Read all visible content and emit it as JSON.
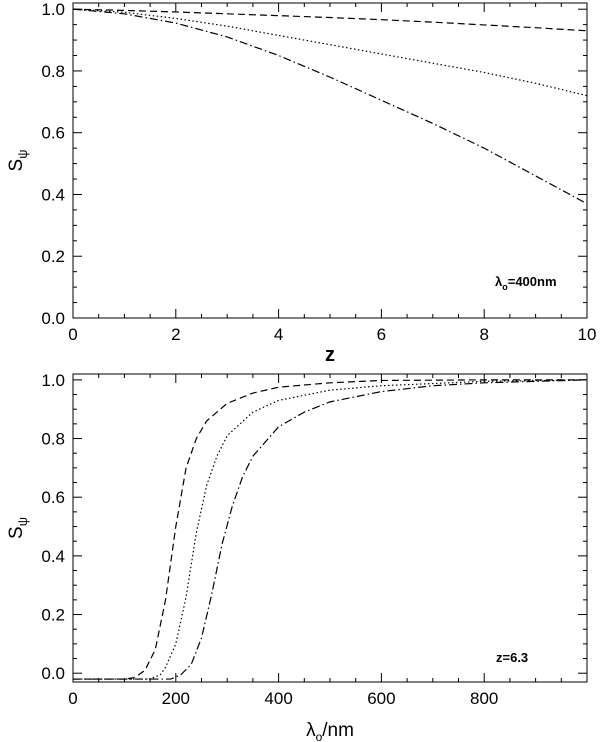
{
  "chart_data": [
    {
      "type": "line",
      "title": "",
      "xlabel": "z",
      "ylabel": {
        "main": "S",
        "sub": "ψ"
      },
      "xlim": [
        0,
        10
      ],
      "ylim": [
        0,
        1.02
      ],
      "xticks": [
        "0",
        "2",
        "4",
        "6",
        "8",
        "10"
      ],
      "yticks": [
        "0.0",
        "0.2",
        "0.4",
        "0.6",
        "0.8",
        "1.0"
      ],
      "annotation": {
        "main": "λ",
        "sub": "o",
        "rest": "=400nm"
      },
      "grid": false,
      "series": [
        {
          "style": "dashed",
          "x": [
            0,
            1,
            2,
            3,
            4,
            5,
            6,
            7,
            8,
            9,
            10
          ],
          "y": [
            1.0,
            0.996,
            0.991,
            0.985,
            0.979,
            0.973,
            0.966,
            0.958,
            0.949,
            0.94,
            0.93
          ]
        },
        {
          "style": "dotted",
          "x": [
            0,
            1,
            2,
            3,
            4,
            5,
            6,
            7,
            8,
            9,
            10
          ],
          "y": [
            1.0,
            0.99,
            0.97,
            0.945,
            0.915,
            0.885,
            0.855,
            0.825,
            0.795,
            0.76,
            0.72
          ]
        },
        {
          "style": "dash-dot",
          "x": [
            0,
            1,
            2,
            3,
            4,
            5,
            6,
            7,
            8,
            9,
            10
          ],
          "y": [
            1.0,
            0.985,
            0.955,
            0.91,
            0.85,
            0.78,
            0.705,
            0.63,
            0.55,
            0.46,
            0.37
          ]
        }
      ]
    },
    {
      "type": "line",
      "title": "",
      "xlabel": {
        "main": "λ",
        "sub": "o",
        "rest": "/nm"
      },
      "ylabel": {
        "main": "S",
        "sub": "ψ"
      },
      "xlim": [
        0,
        1000
      ],
      "ylim": [
        -0.03,
        1.02
      ],
      "xticks": [
        "0",
        "200",
        "400",
        "600",
        "800"
      ],
      "yticks": [
        "0.0",
        "0.2",
        "0.4",
        "0.6",
        "0.8",
        "1.0"
      ],
      "annotation": {
        "main": "z=6.3",
        "sub": "",
        "rest": ""
      },
      "grid": false,
      "series": [
        {
          "style": "dashed",
          "x": [
            0,
            100,
            120,
            140,
            160,
            180,
            200,
            220,
            240,
            260,
            300,
            350,
            400,
            500,
            600,
            800,
            1000
          ],
          "y": [
            -0.02,
            -0.02,
            -0.015,
            0.01,
            0.08,
            0.25,
            0.5,
            0.7,
            0.8,
            0.86,
            0.92,
            0.955,
            0.975,
            0.99,
            0.998,
            1.0,
            1.0
          ]
        },
        {
          "style": "dotted",
          "x": [
            0,
            150,
            170,
            180,
            200,
            220,
            240,
            260,
            280,
            300,
            350,
            400,
            500,
            600,
            800,
            1000
          ],
          "y": [
            -0.02,
            -0.02,
            -0.005,
            0.02,
            0.1,
            0.26,
            0.48,
            0.64,
            0.74,
            0.81,
            0.89,
            0.93,
            0.965,
            0.98,
            0.995,
            1.0
          ]
        },
        {
          "style": "dash-dot",
          "x": [
            0,
            190,
            210,
            230,
            250,
            270,
            290,
            310,
            330,
            350,
            400,
            450,
            500,
            600,
            700,
            800,
            1000
          ],
          "y": [
            -0.02,
            -0.02,
            -0.005,
            0.03,
            0.12,
            0.27,
            0.44,
            0.57,
            0.67,
            0.74,
            0.84,
            0.89,
            0.925,
            0.96,
            0.98,
            0.99,
            1.0
          ]
        }
      ]
    }
  ]
}
